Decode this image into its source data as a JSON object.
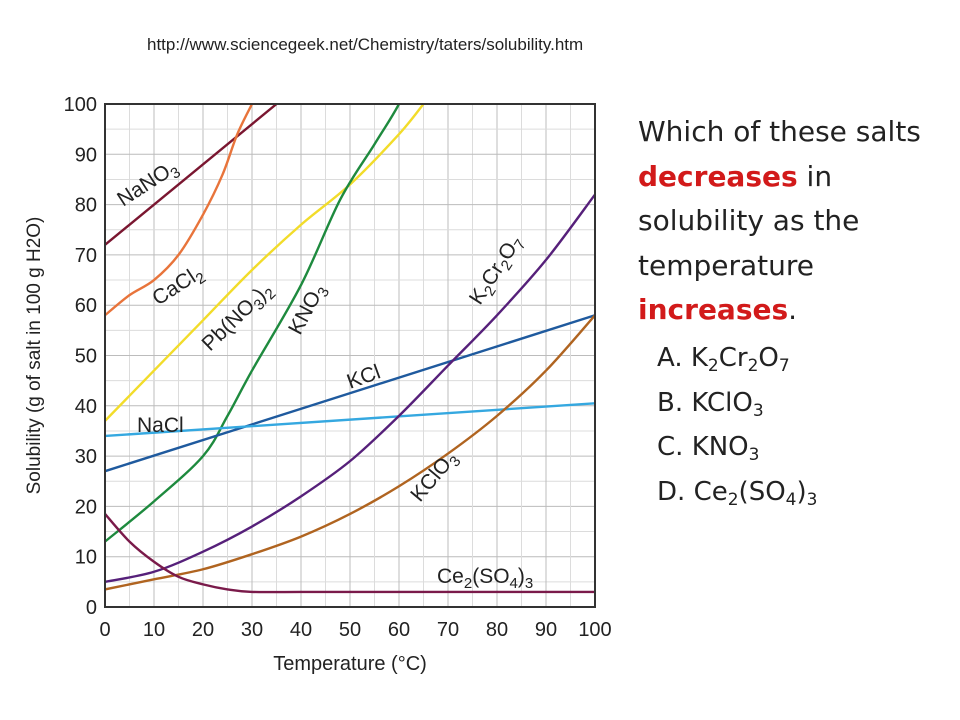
{
  "source_url": "http://www.sciencegeek.net/Chemistry/taters/solubility.htm",
  "question": {
    "part1": "Which of these salts",
    "highlight1": "decreases",
    "part2": " in solubility as the temperature",
    "highlight2": "increases",
    "part3": "."
  },
  "options": [
    {
      "letter": "A.",
      "parts": [
        [
          "K",
          false
        ],
        [
          "2",
          true
        ],
        [
          "Cr",
          false
        ],
        [
          "2",
          true
        ],
        [
          "O",
          false
        ],
        [
          "7",
          true
        ]
      ]
    },
    {
      "letter": "B.",
      "parts": [
        [
          "KClO",
          false
        ],
        [
          "3",
          true
        ]
      ]
    },
    {
      "letter": "C.",
      "parts": [
        [
          "KNO",
          false
        ],
        [
          "3",
          true
        ]
      ]
    },
    {
      "letter": "D.",
      "parts": [
        [
          "Ce",
          false
        ],
        [
          "2",
          true
        ],
        [
          "(SO",
          false
        ],
        [
          "4",
          true
        ],
        [
          ")",
          false
        ],
        [
          "3",
          true
        ]
      ]
    }
  ],
  "colors": {
    "highlight": "#d21a1a",
    "grid": "#c8c8c8"
  },
  "chart_data": {
    "type": "line",
    "xlabel": "Temperature (°C)",
    "ylabel": "Solubility (g of salt in 100 g H2O)",
    "xlim": [
      0,
      100
    ],
    "ylim": [
      0,
      100
    ],
    "xticks": [
      0,
      10,
      20,
      30,
      40,
      50,
      60,
      70,
      80,
      90,
      100
    ],
    "yticks": [
      0,
      10,
      20,
      30,
      40,
      50,
      60,
      70,
      80,
      90,
      100
    ],
    "grid": true,
    "series": [
      {
        "name": "NaNO3",
        "color": "#7a1630",
        "x": [
          0,
          35
        ],
        "y": [
          72,
          100
        ]
      },
      {
        "name": "CaCl2",
        "color": "#e8743b",
        "x": [
          0,
          5,
          10,
          15,
          20,
          24,
          27,
          30
        ],
        "y": [
          58,
          62,
          65,
          70,
          78,
          86,
          94,
          100
        ]
      },
      {
        "name": "Pb(NO3)2",
        "color": "#f2dc2a",
        "x": [
          0,
          10,
          20,
          30,
          40,
          50,
          60,
          65
        ],
        "y": [
          37,
          47,
          57,
          67,
          76,
          84,
          94,
          100
        ]
      },
      {
        "name": "KNO3",
        "color": "#1e8a3e",
        "x": [
          0,
          10,
          20,
          25,
          30,
          40,
          48,
          55,
          60,
          65
        ],
        "y": [
          13,
          21,
          30,
          38,
          47,
          64,
          81,
          92,
          100,
          110
        ]
      },
      {
        "name": "KCl",
        "color": "#1f5a9e",
        "x": [
          0,
          100
        ],
        "y": [
          27,
          58
        ]
      },
      {
        "name": "NaCl",
        "color": "#35a8e0",
        "x": [
          0,
          100
        ],
        "y": [
          34,
          40.5
        ]
      },
      {
        "name": "K2Cr2O7",
        "color": "#56207a",
        "x": [
          0,
          10,
          20,
          30,
          40,
          50,
          60,
          70,
          80,
          90,
          100
        ],
        "y": [
          5,
          7,
          11,
          16,
          22,
          29,
          38,
          48,
          58,
          69,
          82
        ]
      },
      {
        "name": "KClO3",
        "color": "#b06420",
        "x": [
          0,
          10,
          20,
          30,
          40,
          50,
          60,
          70,
          80,
          90,
          100
        ],
        "y": [
          3.5,
          5.5,
          7.5,
          10.5,
          14,
          18.5,
          24,
          30.5,
          38,
          47,
          58
        ]
      },
      {
        "name": "Ce2(SO4)3",
        "color": "#7a1a4a",
        "x": [
          0,
          5,
          10,
          15,
          20,
          25,
          30,
          40,
          60,
          100
        ],
        "y": [
          18.5,
          13,
          9,
          6,
          4.5,
          3.5,
          3,
          3,
          3,
          3
        ]
      }
    ],
    "curve_labels": [
      {
        "series": "NaNO3",
        "parts": [
          [
            "NaNO",
            false
          ],
          [
            "3",
            true
          ]
        ]
      },
      {
        "series": "CaCl2",
        "parts": [
          [
            "CaCl",
            false
          ],
          [
            "2",
            true
          ]
        ]
      },
      {
        "series": "Pb(NO3)2",
        "parts": [
          [
            "Pb(NO",
            false
          ],
          [
            "3",
            true
          ],
          [
            ")",
            false
          ],
          [
            "2",
            true
          ]
        ]
      },
      {
        "series": "KNO3",
        "parts": [
          [
            "KNO",
            false
          ],
          [
            "3",
            true
          ]
        ]
      },
      {
        "series": "KCl",
        "parts": [
          [
            "KCl",
            false
          ]
        ]
      },
      {
        "series": "NaCl",
        "parts": [
          [
            "NaCl",
            false
          ]
        ]
      },
      {
        "series": "K2Cr2O7",
        "parts": [
          [
            "K",
            false
          ],
          [
            "2",
            true
          ],
          [
            "Cr",
            false
          ],
          [
            "2",
            true
          ],
          [
            "O",
            false
          ],
          [
            "7",
            true
          ]
        ]
      },
      {
        "series": "KClO3",
        "parts": [
          [
            "KClO",
            false
          ],
          [
            "3",
            true
          ]
        ]
      },
      {
        "series": "Ce2(SO4)3",
        "parts": [
          [
            "Ce",
            false
          ],
          [
            "2",
            true
          ],
          [
            "(SO",
            false
          ],
          [
            "4",
            true
          ],
          [
            ")",
            false
          ],
          [
            "3",
            true
          ]
        ]
      }
    ]
  }
}
